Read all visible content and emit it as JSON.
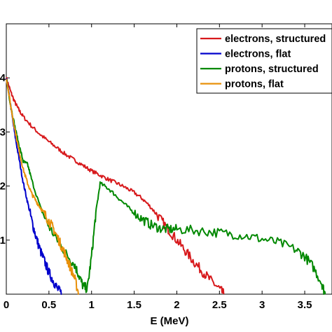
{
  "chart_data": {
    "type": "line",
    "xlabel": "E (MeV)",
    "ylabel": "",
    "xlim": [
      0,
      3.82
    ],
    "ylim": [
      0,
      5.0
    ],
    "x_ticks": [
      0,
      0.5,
      1,
      1.5,
      2,
      2.5,
      3,
      3.5
    ],
    "x_tick_labels": [
      "0",
      "0.5",
      "1",
      "1.5",
      "2",
      "2.5",
      "3",
      "3.5"
    ],
    "y_ticks": [
      1,
      2,
      3,
      4
    ],
    "y_tick_labels": [
      "1",
      "2",
      "3",
      "4"
    ],
    "grid": false,
    "legend_position": "top-right",
    "series": [
      {
        "name": "electrons, structured",
        "color": "#d7191c",
        "x": [
          0.0,
          0.05,
          0.1,
          0.15,
          0.2,
          0.3,
          0.4,
          0.5,
          0.6,
          0.7,
          0.8,
          0.9,
          1.0,
          1.1,
          1.2,
          1.3,
          1.4,
          1.5,
          1.6,
          1.7,
          1.8,
          1.9,
          2.0,
          2.1,
          2.2,
          2.3,
          2.4,
          2.5,
          2.55
        ],
        "y": [
          4.0,
          3.75,
          3.55,
          3.4,
          3.28,
          3.1,
          2.95,
          2.82,
          2.7,
          2.58,
          2.48,
          2.38,
          2.28,
          2.2,
          2.12,
          2.05,
          1.97,
          1.88,
          1.76,
          1.6,
          1.4,
          1.2,
          1.0,
          0.8,
          0.6,
          0.42,
          0.25,
          0.1,
          0.0
        ]
      },
      {
        "name": "electrons, flat",
        "color": "#0000cc",
        "x": [
          0.0,
          0.05,
          0.1,
          0.15,
          0.2,
          0.25,
          0.3,
          0.35,
          0.4,
          0.45,
          0.5,
          0.55,
          0.6,
          0.65
        ],
        "y": [
          4.0,
          3.5,
          2.95,
          2.5,
          2.05,
          1.7,
          1.35,
          1.05,
          0.8,
          0.6,
          0.4,
          0.25,
          0.1,
          0.0
        ]
      },
      {
        "name": "protons, structured",
        "color": "#008800",
        "x": [
          0.0,
          0.05,
          0.1,
          0.15,
          0.2,
          0.25,
          0.3,
          0.4,
          0.5,
          0.6,
          0.7,
          0.8,
          0.85,
          0.9,
          0.95,
          1.0,
          1.05,
          1.1,
          1.2,
          1.3,
          1.4,
          1.5,
          1.6,
          1.7,
          1.8,
          1.9,
          2.0,
          2.2,
          2.4,
          2.6,
          2.8,
          3.0,
          3.2,
          3.4,
          3.5,
          3.6,
          3.7,
          3.74
        ],
        "y": [
          4.0,
          3.5,
          3.1,
          2.75,
          2.45,
          2.4,
          2.1,
          1.6,
          1.25,
          1.0,
          0.75,
          0.55,
          0.35,
          0.15,
          0.1,
          0.7,
          1.5,
          2.05,
          1.95,
          1.8,
          1.65,
          1.5,
          1.38,
          1.28,
          1.22,
          1.2,
          1.2,
          1.18,
          1.15,
          1.12,
          1.08,
          1.02,
          0.95,
          0.82,
          0.7,
          0.5,
          0.2,
          0.0
        ]
      },
      {
        "name": "protons, flat",
        "color": "#e8900a",
        "x": [
          0.0,
          0.05,
          0.1,
          0.15,
          0.2,
          0.25,
          0.3,
          0.35,
          0.4,
          0.45,
          0.5,
          0.55,
          0.6,
          0.65,
          0.7,
          0.75,
          0.8,
          0.85
        ],
        "y": [
          4.0,
          3.5,
          3.05,
          2.65,
          2.3,
          2.05,
          1.85,
          1.72,
          1.6,
          1.48,
          1.35,
          1.22,
          1.05,
          0.88,
          0.7,
          0.5,
          0.3,
          0.0
        ]
      }
    ]
  }
}
